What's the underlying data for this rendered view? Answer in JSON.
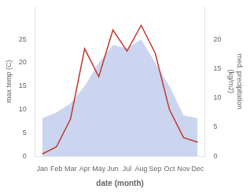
{
  "chart_data": {
    "type": "line",
    "categories": [
      "Jan",
      "Feb",
      "Mar",
      "Apr",
      "May",
      "Jun",
      "Jul",
      "Aug",
      "Sep",
      "Oct",
      "Nov",
      "Dec"
    ],
    "series": [
      {
        "type": "line",
        "color": "#c0392b",
        "values": [
          0.5,
          2.0,
          8.0,
          23.0,
          17.0,
          27.0,
          22.5,
          28.0,
          22.0,
          10.0,
          4.0,
          3.0
        ]
      },
      {
        "type": "area",
        "color": "#b0bee8",
        "axis": "y2",
        "values": [
          6.5,
          7.5,
          9.0,
          12.0,
          16.0,
          19.0,
          18.5,
          20.0,
          16.0,
          12.0,
          7.0,
          6.5
        ]
      }
    ],
    "xlabel": "date (month)",
    "ylabel": "max temp (C)",
    "y2label": "med. precipitation\n(kg/m2)",
    "ylim": [
      0,
      32
    ],
    "yticks": [
      0,
      5,
      10,
      15,
      20,
      25
    ],
    "y2lim": [
      0,
      25.6
    ],
    "y2ticks": [
      0,
      5,
      10,
      15,
      20
    ],
    "grid": false
  }
}
